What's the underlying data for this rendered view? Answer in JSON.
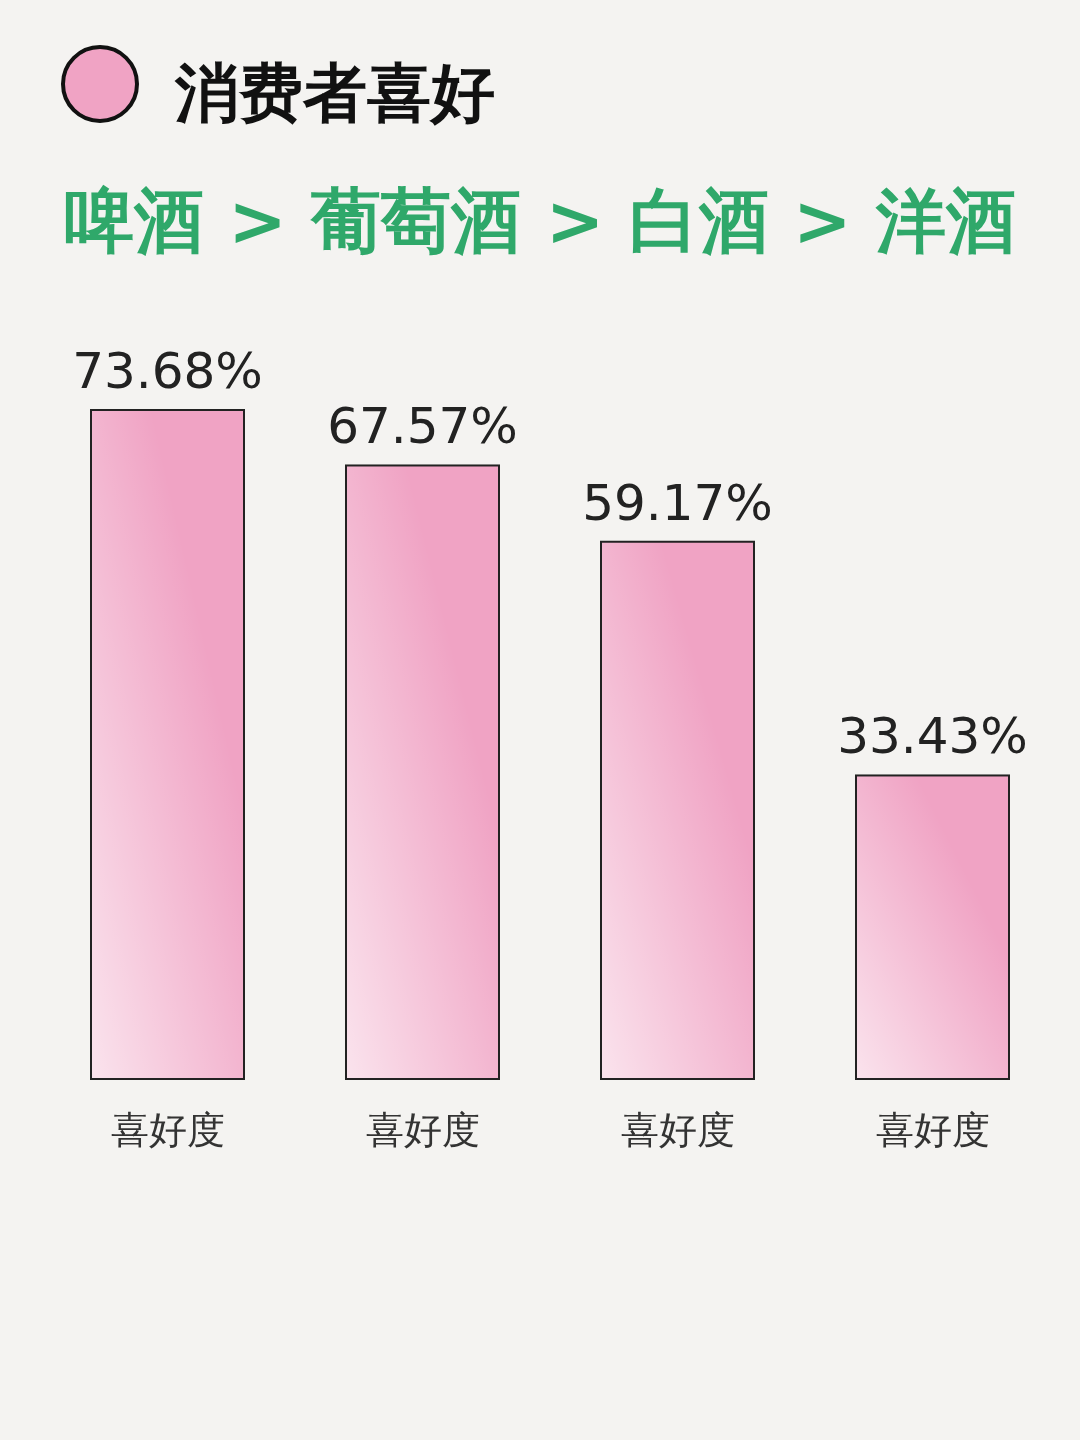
{
  "chart_data": {
    "type": "bar",
    "title": "消费者喜好",
    "subtitle": "啤酒 > 葡萄酒 > 白酒 > 洋酒",
    "categories": [
      "喜好度",
      "喜好度",
      "喜好度",
      "喜好度"
    ],
    "values": [
      73.68,
      67.57,
      59.17,
      33.43
    ],
    "value_labels": [
      "73.68%",
      "67.57%",
      "59.17%",
      "33.43%"
    ],
    "color": "#f0a3c4"
  }
}
